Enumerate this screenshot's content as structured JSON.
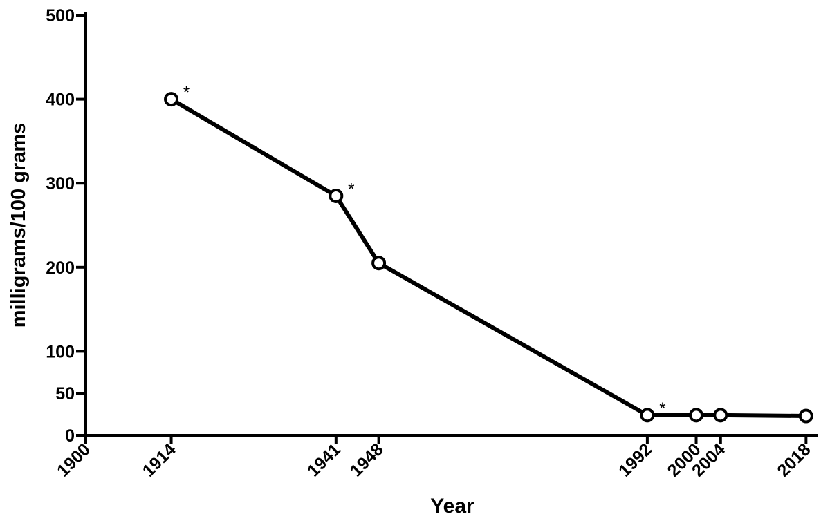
{
  "chart_data": {
    "type": "line",
    "x_label": "Year",
    "y_label": "milligrams/100 grams",
    "x": [
      1914,
      1941,
      1948,
      1992,
      2000,
      2004,
      2018
    ],
    "values": [
      400,
      285,
      205,
      24,
      24,
      24,
      23
    ],
    "color": "#000000",
    "annotations": [
      {
        "x": 1914,
        "y": 400,
        "text": "*"
      },
      {
        "x": 1941,
        "y": 285,
        "text": "*"
      },
      {
        "x": 1992,
        "y": 24,
        "text": "*"
      }
    ],
    "xlim": [
      1900,
      2020
    ],
    "xticks": [
      1900,
      1914,
      1941,
      1948,
      1992,
      2000,
      2004,
      2018
    ],
    "ylim": [
      0,
      500
    ],
    "yticks": [
      0,
      50,
      100,
      200,
      300,
      400,
      500
    ]
  }
}
